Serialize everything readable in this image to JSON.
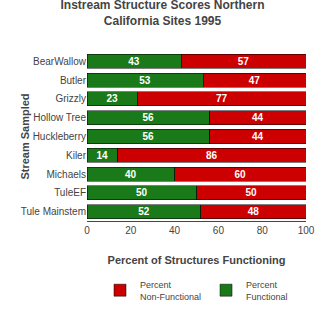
{
  "chart_data": {
    "type": "bar",
    "orientation": "horizontal",
    "stacked": true,
    "data_labels": true,
    "title": "Instream Structure Scores Northern\nCalifornia Sites 1995",
    "xlabel": "Percent of Structures Functioning",
    "ylabel": "Stream Sampled",
    "categories": [
      "BearWallow",
      "Butler",
      "Grizzly",
      "Hollow Tree",
      "Huckleberry",
      "Kiler",
      "Michaels",
      "TuleEF",
      "Tule Mainstem"
    ],
    "series": [
      {
        "name": "Percent\nFunctional",
        "color": "#1a7a1a",
        "values": [
          43,
          53,
          23,
          56,
          56,
          14,
          40,
          50,
          52
        ]
      },
      {
        "name": "Percent\nNon-Functional",
        "color": "#cc0000",
        "values": [
          57,
          47,
          77,
          44,
          44,
          86,
          60,
          50,
          48
        ]
      }
    ],
    "xlim": [
      0,
      100
    ],
    "xticks": [
      0,
      20,
      40,
      60,
      80,
      100
    ],
    "grid": false,
    "legend": "bottom"
  }
}
